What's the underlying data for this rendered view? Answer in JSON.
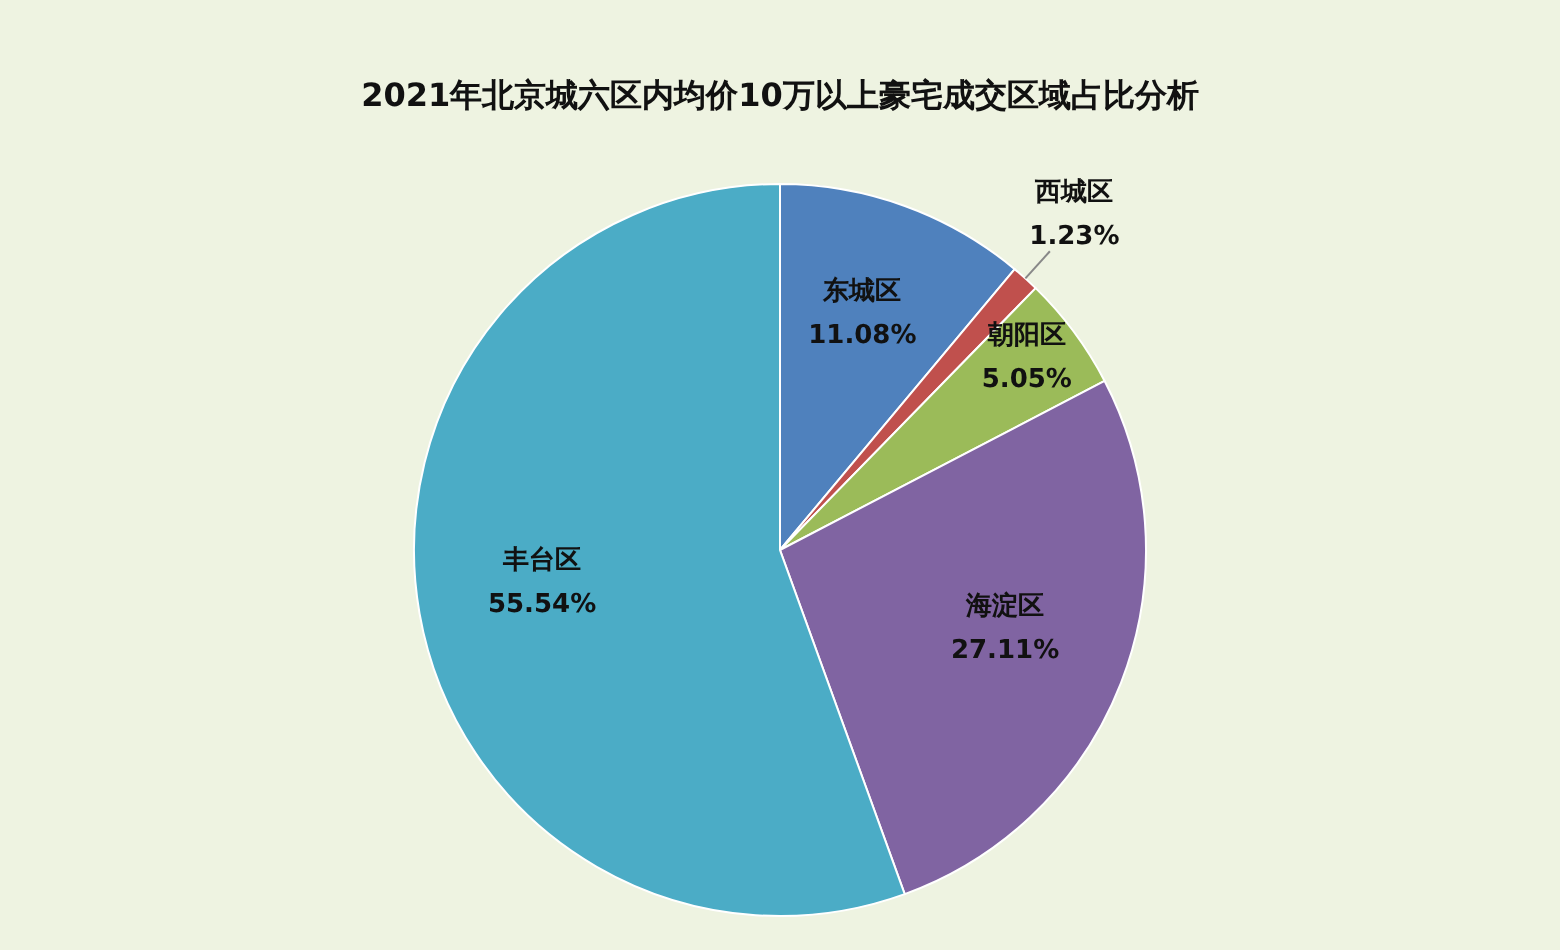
{
  "chart_data": {
    "type": "pie",
    "title": "2021年北京城六区内均价10万以上豪宅成交区域占比分析",
    "categories": [
      "东城区",
      "西城区",
      "朝阳区",
      "海淀区",
      "丰台区"
    ],
    "values": [
      11.08,
      1.23,
      5.05,
      27.11,
      55.54
    ],
    "value_labels": [
      "11.08%",
      "1.23%",
      "5.05%",
      "27.11%",
      "55.54%"
    ],
    "colors": [
      "#4f81bd",
      "#c0504d",
      "#9bbb59",
      "#8064a2",
      "#4bacc6"
    ]
  }
}
